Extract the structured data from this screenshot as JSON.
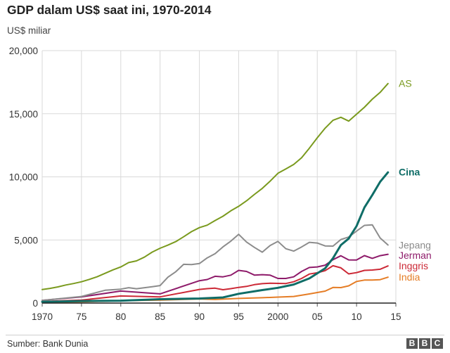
{
  "chart_data": {
    "type": "line",
    "title": "GDP dalam US$ saat ini, 1970-2014",
    "ylabel": "US$ miliar",
    "xlabel": "",
    "xlim": [
      1970,
      2015
    ],
    "ylim": [
      0,
      20000
    ],
    "grid": true,
    "legend": "right-inline",
    "x_ticks": [
      1970,
      1975,
      1980,
      1985,
      1990,
      1995,
      2000,
      2005,
      2010,
      2015
    ],
    "x_tick_labels": [
      "1970",
      "75",
      "80",
      "85",
      "90",
      "95",
      "2000",
      "05",
      "10",
      "15"
    ],
    "y_ticks": [
      0,
      5000,
      10000,
      15000,
      20000
    ],
    "y_tick_labels": [
      "0",
      "5,000",
      "10,000",
      "15,000",
      "20,000"
    ],
    "source": "Sumber: Bank Dunia",
    "series": [
      {
        "name": "AS",
        "key": "as",
        "color": "#7a9a1e",
        "width": 2,
        "bold": false,
        "label_value": 17400,
        "x": [
          1970,
          1971,
          1972,
          1973,
          1974,
          1975,
          1976,
          1977,
          1978,
          1979,
          1980,
          1981,
          1982,
          1983,
          1984,
          1985,
          1986,
          1987,
          1988,
          1989,
          1990,
          1991,
          1992,
          1993,
          1994,
          1995,
          1996,
          1997,
          1998,
          1999,
          2000,
          2001,
          2002,
          2003,
          2004,
          2005,
          2006,
          2007,
          2008,
          2009,
          2010,
          2011,
          2012,
          2013,
          2014
        ],
        "values": [
          1075,
          1167,
          1282,
          1429,
          1549,
          1689,
          1878,
          2086,
          2357,
          2632,
          2862,
          3211,
          3345,
          3638,
          4041,
          4347,
          4590,
          4870,
          5253,
          5658,
          5980,
          6174,
          6539,
          6879,
          7309,
          7664,
          8100,
          8609,
          9089,
          9661,
          10285,
          10622,
          10978,
          11511,
          12275,
          13094,
          13856,
          14478,
          14719,
          14419,
          14964,
          15518,
          16155,
          16692,
          17393
        ]
      },
      {
        "name": "Cina",
        "key": "cina",
        "color": "#0f6d67",
        "width": 3,
        "bold": true,
        "label_value": 10400,
        "x": [
          1970,
          1975,
          1980,
          1985,
          1990,
          1993,
          1995,
          1998,
          2000,
          2002,
          2004,
          2006,
          2007,
          2008,
          2009,
          2010,
          2011,
          2012,
          2013,
          2014
        ],
        "values": [
          92,
          163,
          191,
          309,
          361,
          445,
          734,
          1029,
          1211,
          1471,
          1956,
          2752,
          3552,
          4598,
          5110,
          6101,
          7573,
          8561,
          9607,
          10355
        ]
      },
      {
        "name": "Jepang",
        "key": "jepang",
        "color": "#8c8c8c",
        "width": 2,
        "bold": false,
        "label_value": 4600,
        "x": [
          1970,
          1975,
          1978,
          1980,
          1981,
          1982,
          1984,
          1985,
          1986,
          1987,
          1988,
          1989,
          1990,
          1991,
          1992,
          1993,
          1994,
          1995,
          1996,
          1997,
          1998,
          1999,
          2000,
          2001,
          2002,
          2003,
          2004,
          2005,
          2006,
          2007,
          2008,
          2009,
          2010,
          2011,
          2012,
          2013,
          2014
        ],
        "values": [
          212,
          521,
          1014,
          1105,
          1218,
          1134,
          1296,
          1385,
          2052,
          2486,
          3071,
          3054,
          3133,
          3584,
          3909,
          4454,
          4907,
          5449,
          4834,
          4414,
          4033,
          4562,
          4888,
          4304,
          4115,
          4445,
          4815,
          4756,
          4530,
          4515,
          5038,
          5231,
          5700,
          6157,
          6203,
          5156,
          4601
        ]
      },
      {
        "name": "Jerman",
        "key": "jerman",
        "color": "#8e1b6a",
        "width": 2,
        "bold": false,
        "label_value": 3800,
        "x": [
          1970,
          1975,
          1980,
          1985,
          1990,
          1991,
          1992,
          1993,
          1994,
          1995,
          1996,
          1997,
          1998,
          1999,
          2000,
          2001,
          2002,
          2003,
          2004,
          2005,
          2006,
          2007,
          2008,
          2009,
          2010,
          2011,
          2012,
          2013,
          2014
        ],
        "values": [
          216,
          489,
          950,
          730,
          1770,
          1868,
          2123,
          2076,
          2210,
          2592,
          2506,
          2220,
          2248,
          2211,
          1950,
          1950,
          2079,
          2505,
          2819,
          2861,
          3003,
          3440,
          3752,
          3418,
          3417,
          3758,
          3544,
          3753,
          3868
        ]
      },
      {
        "name": "Inggris",
        "key": "inggris",
        "color": "#cc2936",
        "width": 2,
        "bold": false,
        "label_value": 2950,
        "x": [
          1970,
          1975,
          1980,
          1985,
          1990,
          1991,
          1992,
          1993,
          1994,
          1995,
          1996,
          1997,
          1998,
          1999,
          2000,
          2001,
          2002,
          2003,
          2004,
          2005,
          2006,
          2007,
          2008,
          2009,
          2010,
          2011,
          2012,
          2013,
          2014
        ],
        "values": [
          130,
          240,
          565,
          490,
          1080,
          1140,
          1180,
          1060,
          1140,
          1240,
          1320,
          1460,
          1540,
          1570,
          1560,
          1550,
          1690,
          1950,
          2300,
          2400,
          2570,
          2960,
          2790,
          2310,
          2410,
          2590,
          2620,
          2680,
          2940
        ]
      },
      {
        "name": "India",
        "key": "india",
        "color": "#e57d26",
        "width": 2,
        "bold": false,
        "label_value": 2050,
        "x": [
          1970,
          1975,
          1980,
          1985,
          1990,
          1992,
          1995,
          1998,
          2000,
          2002,
          2004,
          2005,
          2006,
          2007,
          2008,
          2009,
          2010,
          2011,
          2012,
          2013,
          2014
        ],
        "values": [
          62,
          99,
          189,
          232,
          327,
          284,
          366,
          421,
          476,
          523,
          722,
          834,
          949,
          1239,
          1224,
          1365,
          1708,
          1823,
          1828,
          1857,
          2049
        ]
      }
    ]
  },
  "branding": {
    "logo_letters": [
      "B",
      "B",
      "C"
    ]
  }
}
